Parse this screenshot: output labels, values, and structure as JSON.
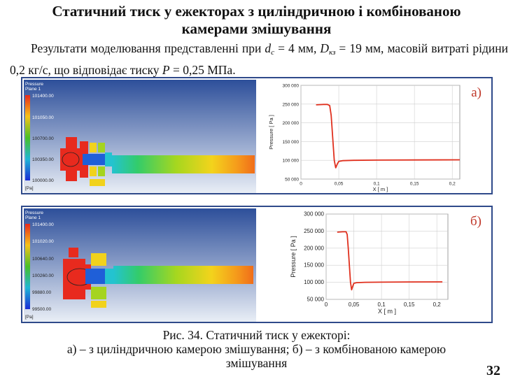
{
  "slide": {
    "title_line1": "Статичний тиск у ежекторах з циліндричною і комбінованою",
    "title_line2": "камерами змішування",
    "intro_part1": "Результати моделювання представленні при ",
    "intro_dc_label": "d",
    "intro_dc_sub": "c",
    "intro_dc_value": " = 4 мм, ",
    "intro_dk_label": "D",
    "intro_dk_sub": "кз",
    "intro_dk_value": " = 19 мм, масовій витраті рідини 0,2 кг/с, що відповідає тиску ",
    "intro_p_label": "P",
    "intro_p_value": " = 0,25 МПа.",
    "caption_line1": "Рис. 34. Статичний тиск у ежекторі:",
    "caption_line2": "а) – з циліндричною камерою змішування; б) – з комбінованою камерою",
    "caption_line3": "змішування",
    "page_number": "32"
  },
  "panels": [
    {
      "label": "а)",
      "legend_title_1": "Pressure",
      "legend_title_2": "Plane 1",
      "legend_ticks": [
        "101400.00",
        "101050.00",
        "100700.00",
        "100350.00",
        "100000.00"
      ],
      "legend_unit": "[Pa]"
    },
    {
      "label": "б)",
      "legend_title_1": "Pressure",
      "legend_title_2": "Plane 1",
      "legend_ticks": [
        "101400.00",
        "101020.00",
        "100640.00",
        "100260.00",
        "99880.00",
        "99500.00"
      ],
      "legend_unit": "[Pa]"
    }
  ],
  "chart_data": [
    {
      "type": "line",
      "xlabel": "X [ m ]",
      "ylabel": "Pressure [ Pa ]",
      "xlim": [
        0,
        0.21
      ],
      "ylim": [
        50000,
        300000
      ],
      "xticks": [
        0,
        0.05,
        0.1,
        0.15,
        0.2
      ],
      "xtick_labels": [
        "0",
        "0,05",
        "0,1",
        "0,15",
        "0,2"
      ],
      "yticks": [
        50000,
        100000,
        150000,
        200000,
        250000,
        300000
      ],
      "ytick_labels": [
        "50 000",
        "100 000",
        "150 000",
        "200 000",
        "250 000",
        "300 000"
      ],
      "grid": true,
      "series": [
        {
          "color": "#e0301e",
          "x": [
            0.02,
            0.03,
            0.035,
            0.038,
            0.04,
            0.042,
            0.044,
            0.046,
            0.048,
            0.05,
            0.055,
            0.07,
            0.1,
            0.15,
            0.21
          ],
          "y": [
            248000,
            249000,
            249000,
            246000,
            220000,
            160000,
            100000,
            80000,
            90000,
            97000,
            99000,
            100000,
            100500,
            101000,
            101300
          ]
        }
      ]
    },
    {
      "type": "line",
      "xlabel": "X [ m ]",
      "ylabel": "Pressure [ Pa ]",
      "xlim": [
        0,
        0.22
      ],
      "ylim": [
        50000,
        300000
      ],
      "xticks": [
        0,
        0.05,
        0.1,
        0.15,
        0.2
      ],
      "xtick_labels": [
        "0",
        "0,05",
        "0,1",
        "0,15",
        "0,2"
      ],
      "yticks": [
        50000,
        100000,
        150000,
        200000,
        250000,
        300000
      ],
      "ytick_labels": [
        "50 000",
        "100 000",
        "150 000",
        "200 000",
        "250 000",
        "300 000"
      ],
      "grid": true,
      "series": [
        {
          "color": "#e0301e",
          "x": [
            0.02,
            0.03,
            0.036,
            0.038,
            0.04,
            0.042,
            0.044,
            0.046,
            0.048,
            0.05,
            0.055,
            0.07,
            0.1,
            0.15,
            0.21
          ],
          "y": [
            247000,
            248000,
            248000,
            240000,
            200000,
            150000,
            100000,
            78000,
            88000,
            97000,
            99000,
            100000,
            100500,
            101000,
            101300
          ]
        }
      ]
    }
  ]
}
